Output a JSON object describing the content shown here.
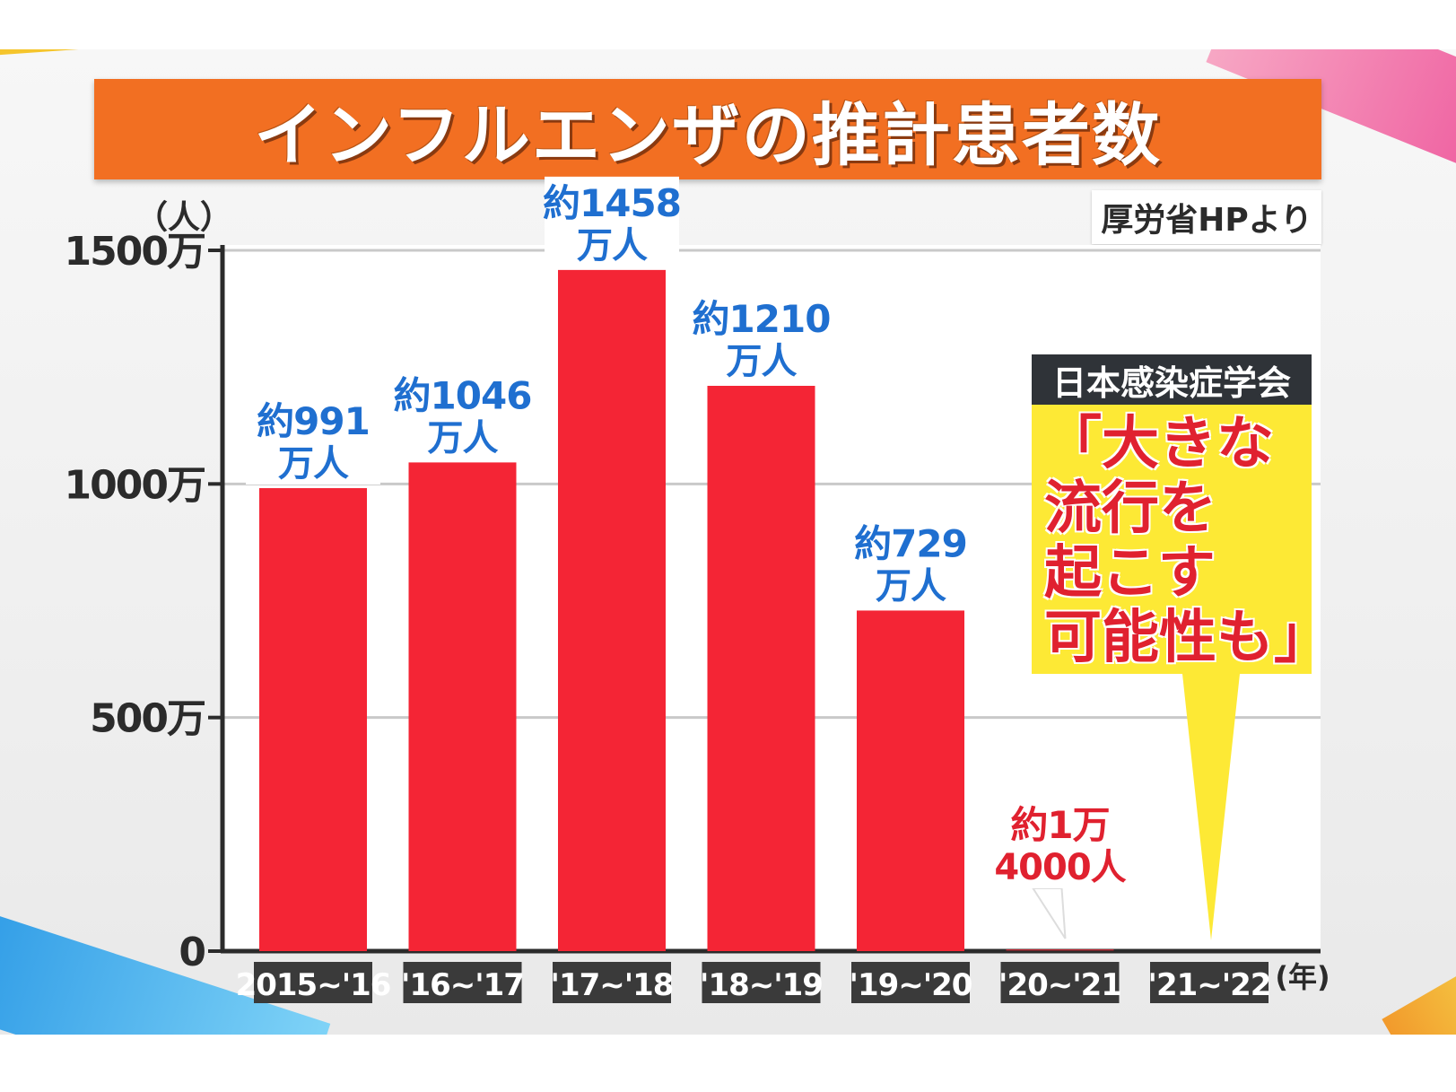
{
  "title": "インフルエンザの推計患者数",
  "source": "厚労省HPより",
  "colors": {
    "bar": "#f42535",
    "title_bg": "#f26f22",
    "label_blue": "#1f6fd0",
    "label_red": "#e0212f",
    "callout_bg": "#fde935",
    "callout_head_bg": "#2f3338",
    "xlabel_bg": "#3a3a3a"
  },
  "callout": {
    "header": "日本感染症学会",
    "lines": [
      "「大きな",
      "流行を",
      "起こす",
      "可能性も」"
    ]
  },
  "chart_data": {
    "type": "bar",
    "title": "インフルエンザの推計患者数",
    "y_unit_label": "（人）",
    "x_unit_label": "(年)",
    "ylim": [
      0,
      15000000
    ],
    "yticks": [
      {
        "value": 0,
        "label": "0"
      },
      {
        "value": 5000000,
        "label": "500万"
      },
      {
        "value": 10000000,
        "label": "1000万"
      },
      {
        "value": 15000000,
        "label": "1500万"
      }
    ],
    "grid": true,
    "categories": [
      "2015~'16",
      "'16~'17",
      "'17~'18",
      "'18~'19",
      "'19~'20",
      "'20~'21",
      "'21~'22"
    ],
    "values": [
      9910000,
      10460000,
      14580000,
      12100000,
      7290000,
      14000,
      null
    ],
    "data_labels": [
      [
        "約991",
        "万人"
      ],
      [
        "約1046",
        "万人"
      ],
      [
        "約1458",
        "万人"
      ],
      [
        "約1210",
        "万人"
      ],
      [
        "約729",
        "万人"
      ],
      [
        "約1万",
        "4000人"
      ],
      null
    ]
  }
}
